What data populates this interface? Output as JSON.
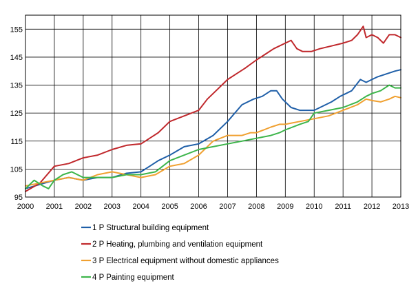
{
  "chart_data": {
    "type": "line",
    "title": "",
    "xlabel": "",
    "ylabel": "",
    "xlim": [
      2000,
      2013
    ],
    "ylim": [
      95,
      160
    ],
    "yticks": [
      95,
      105,
      115,
      125,
      135,
      145,
      155
    ],
    "xticks": [
      "2000",
      "2001",
      "2002",
      "2003",
      "2004",
      "2005",
      "2006",
      "2007",
      "2008",
      "2009",
      "2010",
      "2011",
      "2012",
      "2013"
    ],
    "grid": "horizontal and vertical",
    "legend_position": "bottom",
    "series": [
      {
        "name": "1 P Structural building equipment",
        "color": "#1f5fa8",
        "x": [
          2000.0,
          2000.5,
          2001.0,
          2001.5,
          2002.0,
          2002.5,
          2003.0,
          2003.5,
          2004.0,
          2004.3,
          2004.6,
          2005.0,
          2005.5,
          2006.0,
          2006.5,
          2007.0,
          2007.5,
          2007.9,
          2008.2,
          2008.5,
          2008.7,
          2008.9,
          2009.2,
          2009.5,
          2009.8,
          2010.0,
          2010.3,
          2010.6,
          2010.9,
          2011.0,
          2011.3,
          2011.6,
          2011.8,
          2012.0,
          2012.2,
          2012.5,
          2012.8,
          2013.0
        ],
        "values": [
          98,
          99.5,
          101,
          102,
          101,
          102,
          102,
          103.5,
          104,
          106,
          108,
          110,
          113,
          114,
          117,
          122,
          128,
          130,
          131,
          133,
          133,
          130,
          127,
          126,
          126,
          126,
          127.5,
          129,
          131,
          131.5,
          133,
          137,
          136,
          137,
          138,
          139,
          140,
          140.5
        ]
      },
      {
        "name": "2 P Heating, plumbing and ventilation equipment",
        "color": "#c0282c",
        "x": [
          2000.0,
          2000.5,
          2001.0,
          2001.5,
          2002.0,
          2002.5,
          2003.0,
          2003.5,
          2004.0,
          2004.3,
          2004.6,
          2005.0,
          2005.5,
          2006.0,
          2006.3,
          2006.6,
          2007.0,
          2007.3,
          2007.6,
          2008.0,
          2008.3,
          2008.6,
          2009.0,
          2009.2,
          2009.4,
          2009.6,
          2009.9,
          2010.2,
          2010.6,
          2011.0,
          2011.3,
          2011.5,
          2011.7,
          2011.8,
          2012.0,
          2012.2,
          2012.4,
          2012.6,
          2012.8,
          2013.0
        ],
        "values": [
          97,
          100,
          106,
          107,
          109,
          110,
          112,
          113.5,
          114,
          116,
          118,
          122,
          124,
          126,
          130,
          133,
          137,
          139,
          141,
          144,
          146,
          148,
          150,
          151,
          148,
          147,
          147,
          148,
          149,
          150,
          151,
          153,
          156,
          152,
          153,
          152,
          150,
          153,
          153,
          152
        ]
      },
      {
        "name": "3 P Electrical equipment without domestic appliances",
        "color": "#f0a030",
        "x": [
          2000.0,
          2000.5,
          2001.0,
          2001.5,
          2002.0,
          2002.5,
          2003.0,
          2003.5,
          2004.0,
          2004.5,
          2005.0,
          2005.5,
          2006.0,
          2006.5,
          2007.0,
          2007.5,
          2007.8,
          2008.0,
          2008.5,
          2008.8,
          2009.0,
          2009.5,
          2010.0,
          2010.5,
          2011.0,
          2011.5,
          2011.8,
          2012.0,
          2012.3,
          2012.6,
          2012.8,
          2013.0
        ],
        "values": [
          99,
          100,
          101,
          102,
          101,
          103,
          104,
          103,
          102,
          103,
          106,
          107,
          110,
          115,
          117,
          117,
          118,
          118,
          120,
          121,
          121,
          122,
          123,
          124,
          126,
          128,
          130,
          129.5,
          129,
          130,
          131,
          130.5
        ]
      },
      {
        "name": "4 P Painting equipment",
        "color": "#3cb54a",
        "x": [
          2000.0,
          2000.3,
          2000.6,
          2000.8,
          2001.0,
          2001.3,
          2001.6,
          2002.0,
          2002.5,
          2003.0,
          2003.5,
          2004.0,
          2004.5,
          2005.0,
          2005.5,
          2006.0,
          2006.5,
          2007.0,
          2007.5,
          2008.0,
          2008.5,
          2008.8,
          2009.0,
          2009.5,
          2009.8,
          2010.0,
          2010.5,
          2011.0,
          2011.5,
          2011.8,
          2012.0,
          2012.3,
          2012.6,
          2012.8,
          2013.0
        ],
        "values": [
          98,
          101,
          99,
          98,
          101,
          103,
          104,
          102,
          102,
          102,
          103,
          103,
          104,
          108,
          110,
          112,
          113,
          114,
          115,
          116,
          117,
          118,
          119,
          121,
          122,
          125,
          126,
          127,
          129,
          131,
          132,
          133,
          135,
          134,
          134
        ]
      }
    ]
  },
  "legend": {
    "items": [
      {
        "label": "1 P Structural building equipment",
        "color": "#1f5fa8"
      },
      {
        "label": "2 P Heating, plumbing and ventilation equipment",
        "color": "#c0282c"
      },
      {
        "label": "3 P Electrical equipment without domestic appliances",
        "color": "#f0a030"
      },
      {
        "label": "4 P Painting equipment",
        "color": "#3cb54a"
      }
    ]
  }
}
